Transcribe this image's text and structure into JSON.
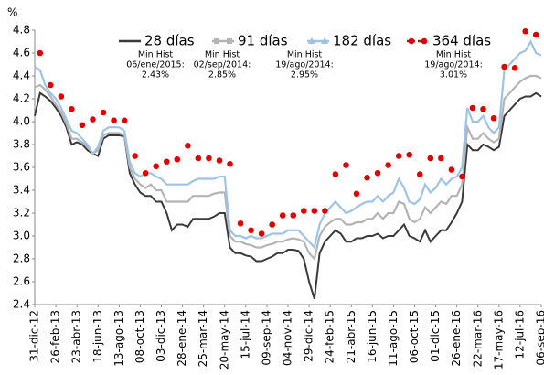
{
  "chart_data": {
    "type": "line",
    "ylabel": "%",
    "ylim": [
      2.4,
      4.8
    ],
    "yticks": [
      2.4,
      2.6,
      2.8,
      {
        "value": 3,
        "label": "3.0"
      },
      3.2,
      3.4,
      3.6,
      3.8,
      {
        "value": 4,
        "label": "4.0"
      },
      4.2,
      4.4,
      4.6,
      4.8
    ],
    "grid": false,
    "legend": "top",
    "categories": [
      "31-dic-12",
      null,
      null,
      null,
      "26-feb-13",
      null,
      null,
      null,
      "23-abr-13",
      null,
      null,
      null,
      "18-jun-13",
      null,
      null,
      null,
      "13-ago-13",
      null,
      null,
      null,
      "08-oct-13",
      null,
      null,
      null,
      "03-dic-13",
      null,
      null,
      null,
      "28-ene-14",
      null,
      null,
      null,
      "25-mar-14",
      null,
      null,
      null,
      "20-may-14",
      null,
      null,
      null,
      "15-jul-14",
      null,
      null,
      null,
      "09-sep-14",
      null,
      null,
      null,
      "04-nov-14",
      null,
      null,
      null,
      "29-dic-14",
      null,
      null,
      null,
      "24-feb-15",
      null,
      null,
      null,
      "21-abr-15",
      null,
      null,
      null,
      "16-jun-15",
      null,
      null,
      null,
      "11-ago-15",
      null,
      null,
      null,
      "06-oct-15",
      null,
      null,
      null,
      "01-dic-15",
      null,
      null,
      null,
      "26-ene-16",
      null,
      null,
      null,
      "22-mar-16",
      null,
      null,
      null,
      "17-may-16",
      null,
      null,
      null,
      "12-jul-16",
      null,
      null,
      null,
      "06-sep-16"
    ],
    "series": [
      {
        "name": "28 días",
        "color": "#3a3a3a",
        "marker": "none",
        "line": true,
        "values": [
          4.05,
          4.25,
          4.22,
          4.18,
          4.12,
          4.05,
          3.95,
          3.8,
          3.82,
          3.8,
          3.75,
          3.72,
          3.7,
          3.85,
          3.88,
          3.88,
          3.88,
          3.87,
          3.55,
          3.45,
          3.38,
          3.35,
          3.35,
          3.3,
          3.3,
          3.2,
          3.05,
          3.1,
          3.1,
          3.08,
          3.15,
          3.15,
          3.15,
          3.15,
          3.17,
          3.2,
          3.2,
          2.9,
          2.85,
          2.85,
          2.83,
          2.82,
          2.78,
          2.78,
          2.8,
          2.82,
          2.85,
          2.85,
          2.88,
          2.88,
          2.87,
          2.8,
          2.6,
          2.45,
          2.85,
          2.95,
          3.0,
          3.05,
          3.02,
          2.95,
          2.95,
          2.98,
          2.98,
          3.0,
          3.0,
          3.02,
          2.98,
          3.0,
          3.0,
          3.05,
          3.1,
          3.0,
          2.98,
          2.95,
          3.05,
          2.95,
          3.0,
          3.05,
          3.05,
          3.12,
          3.2,
          3.3,
          3.8,
          3.75,
          3.75,
          3.8,
          3.78,
          3.75,
          3.78,
          4.05,
          4.1,
          4.15,
          4.2,
          4.22,
          4.22,
          4.25,
          4.22
        ]
      },
      {
        "name": "91 días",
        "color": "#b4b4b4",
        "marker": "square",
        "line": true,
        "values": [
          4.3,
          4.32,
          4.28,
          4.22,
          4.15,
          4.08,
          3.98,
          3.85,
          3.85,
          3.82,
          3.78,
          3.72,
          3.75,
          3.88,
          3.9,
          3.9,
          3.9,
          3.88,
          3.6,
          3.5,
          3.45,
          3.42,
          3.45,
          3.4,
          3.4,
          3.3,
          3.3,
          3.3,
          3.3,
          3.3,
          3.35,
          3.35,
          3.35,
          3.35,
          3.37,
          3.38,
          3.38,
          3.0,
          2.95,
          2.95,
          2.93,
          2.92,
          2.9,
          2.9,
          2.92,
          2.93,
          2.95,
          2.95,
          2.97,
          2.98,
          2.97,
          2.95,
          2.85,
          2.8,
          3.0,
          3.08,
          3.12,
          3.15,
          3.15,
          3.1,
          3.1,
          3.12,
          3.12,
          3.15,
          3.15,
          3.2,
          3.15,
          3.2,
          3.2,
          3.3,
          3.28,
          3.15,
          3.12,
          3.15,
          3.25,
          3.2,
          3.25,
          3.3,
          3.28,
          3.35,
          3.35,
          3.45,
          3.95,
          3.85,
          3.85,
          3.9,
          3.85,
          3.82,
          3.85,
          4.2,
          4.25,
          4.3,
          4.35,
          4.38,
          4.4,
          4.4,
          4.38
        ]
      },
      {
        "name": "182 días",
        "color": "#9dc3e6",
        "marker": "triangle",
        "line": true,
        "values": [
          4.48,
          4.45,
          4.32,
          4.25,
          4.2,
          4.12,
          4.02,
          3.92,
          3.9,
          3.85,
          3.8,
          3.72,
          3.78,
          3.92,
          3.95,
          3.95,
          3.95,
          3.92,
          3.65,
          3.55,
          3.52,
          3.55,
          3.55,
          3.52,
          3.5,
          3.45,
          3.45,
          3.45,
          3.45,
          3.45,
          3.48,
          3.5,
          3.5,
          3.5,
          3.5,
          3.52,
          3.52,
          3.05,
          3.0,
          3.0,
          2.98,
          3.0,
          2.98,
          2.98,
          3.0,
          3.02,
          3.02,
          3.02,
          3.05,
          3.05,
          3.05,
          3.0,
          2.95,
          2.9,
          3.1,
          3.2,
          3.25,
          3.3,
          3.25,
          3.2,
          3.22,
          3.25,
          3.28,
          3.3,
          3.3,
          3.35,
          3.3,
          3.35,
          3.38,
          3.5,
          3.42,
          3.3,
          3.28,
          3.32,
          3.45,
          3.38,
          3.42,
          3.5,
          3.45,
          3.5,
          3.52,
          3.6,
          4.12,
          4.0,
          4.0,
          4.05,
          3.95,
          3.9,
          3.95,
          4.45,
          4.5,
          4.55,
          4.6,
          4.62,
          4.7,
          4.6,
          4.58
        ]
      },
      {
        "name": "364 días",
        "color": "#e00000",
        "marker": "circle",
        "line": false,
        "values": [
          null,
          4.6,
          null,
          4.32,
          null,
          4.22,
          null,
          4.11,
          null,
          3.97,
          null,
          4.02,
          null,
          4.08,
          null,
          4.01,
          null,
          4.01,
          null,
          3.7,
          null,
          3.55,
          null,
          3.61,
          null,
          3.65,
          null,
          3.67,
          null,
          3.79,
          null,
          3.68,
          null,
          3.68,
          null,
          3.66,
          null,
          3.63,
          null,
          3.11,
          null,
          3.05,
          null,
          3.02,
          null,
          3.1,
          null,
          3.18,
          null,
          3.18,
          null,
          3.22,
          null,
          3.22,
          null,
          3.22,
          null,
          3.54,
          null,
          3.62,
          null,
          3.37,
          null,
          3.51,
          null,
          3.55,
          null,
          3.62,
          null,
          3.7,
          null,
          3.71,
          null,
          3.54,
          null,
          3.68,
          null,
          3.68,
          null,
          3.58,
          null,
          3.52,
          null,
          4.12,
          null,
          4.11,
          null,
          4.03,
          null,
          4.48,
          null,
          4.47,
          null,
          4.79,
          null,
          4.76,
          null
        ]
      }
    ],
    "annotations": [
      [
        "Min Hist",
        "06/ene/2015:",
        "2.43%"
      ],
      [
        "Min Hist",
        "02/sep/2014:",
        "2.85%"
      ],
      [
        "Min Hist",
        "19/ago/2014:",
        "2.95%"
      ],
      [
        "Min Hist",
        "19/ago/2014:",
        "3.01%"
      ]
    ]
  }
}
